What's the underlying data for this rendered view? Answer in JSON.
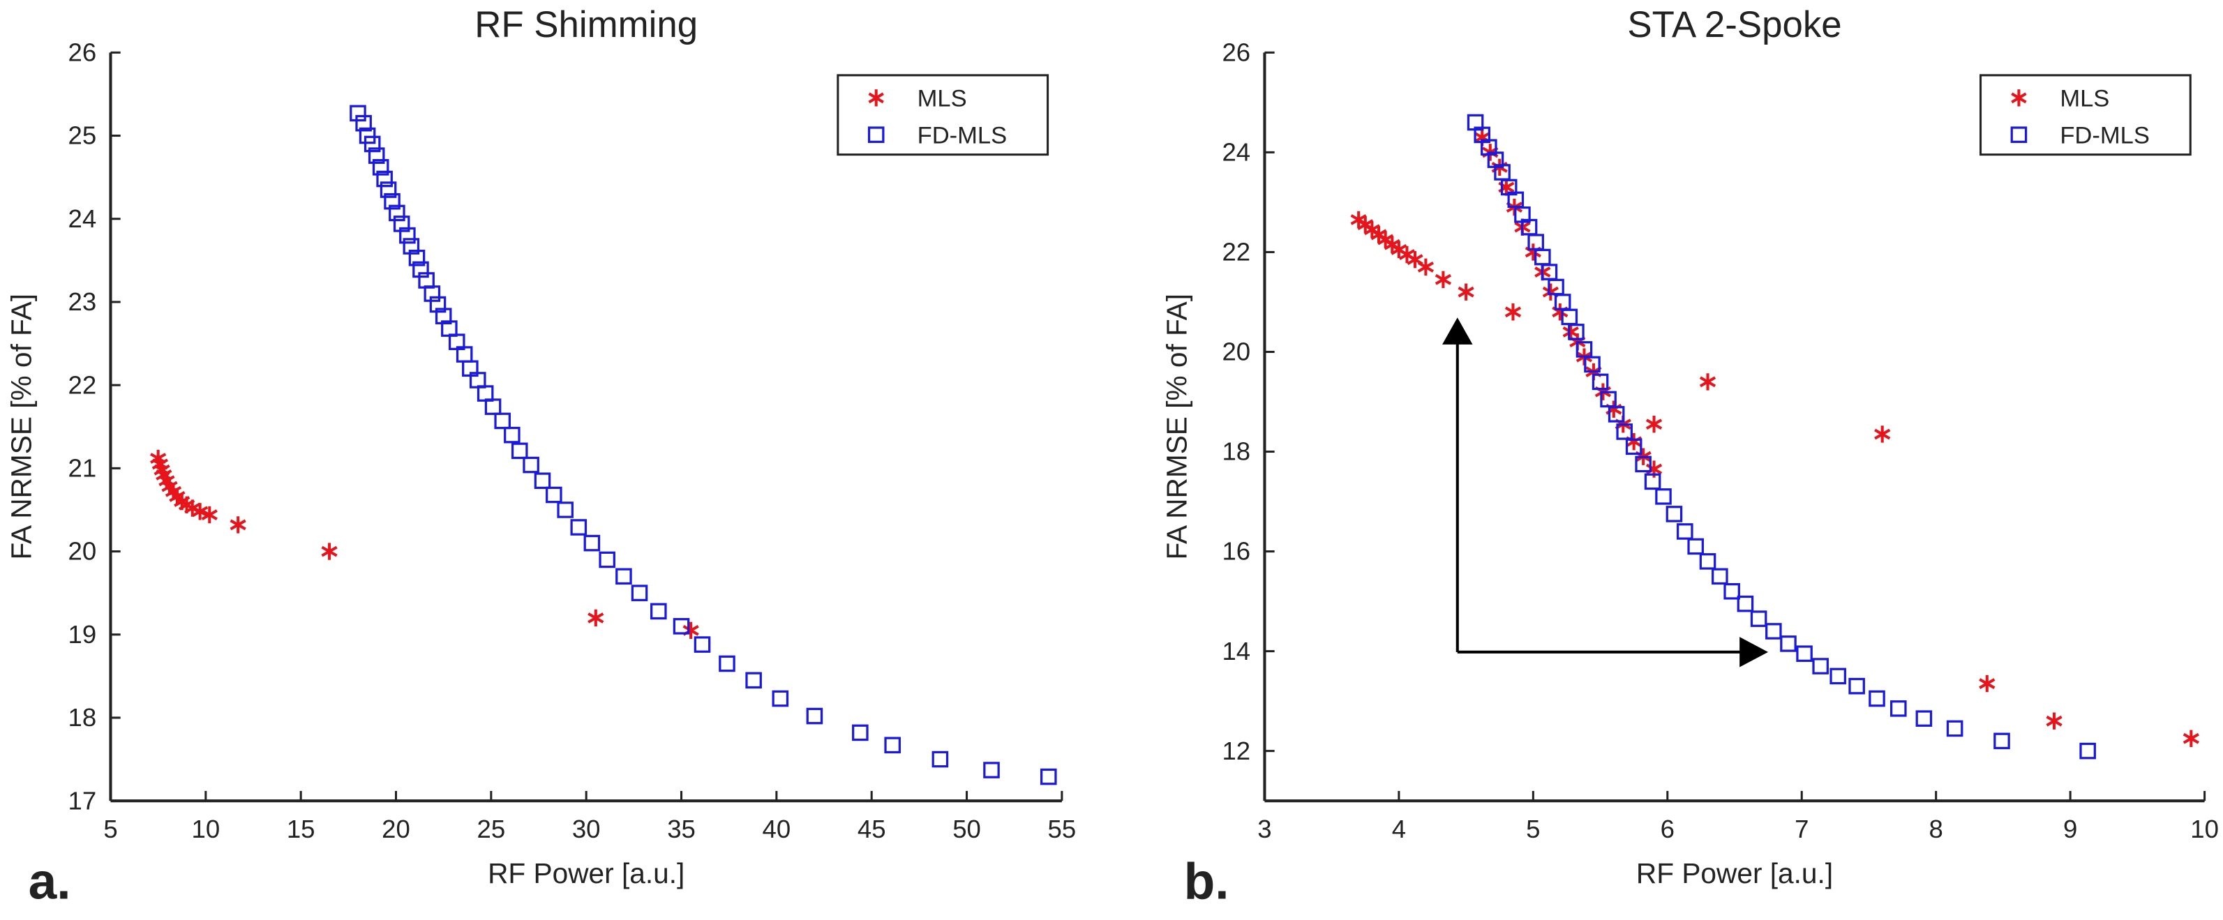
{
  "chart_data": [
    {
      "type": "scatter",
      "title": "RF Shimming",
      "xlabel": "RF Power [a.u.]",
      "ylabel": "FA NRMSE [% of FA]",
      "panel_label": "a.",
      "xlim": [
        5,
        55
      ],
      "xticks": [
        5,
        10,
        15,
        20,
        25,
        30,
        35,
        40,
        45,
        50,
        55
      ],
      "ylim": [
        17,
        26
      ],
      "yticks": [
        17,
        18,
        19,
        20,
        21,
        22,
        23,
        24,
        25,
        26
      ],
      "legend": "upper right",
      "series": [
        {
          "name": "MLS",
          "color": "#e8141b",
          "marker": "asterisk",
          "x": [
            7.5,
            7.6,
            7.7,
            7.8,
            7.95,
            8.1,
            8.3,
            8.5,
            8.75,
            9.0,
            9.3,
            9.7,
            10.2,
            11.7,
            16.5,
            30.5,
            35.5
          ],
          "values": [
            21.12,
            21.05,
            20.98,
            20.92,
            20.85,
            20.78,
            20.72,
            20.66,
            20.6,
            20.56,
            20.52,
            20.48,
            20.44,
            20.32,
            20.0,
            19.2,
            19.05
          ]
        },
        {
          "name": "FD-MLS",
          "color": "#1a1adf",
          "marker": "square",
          "x": [
            18.0,
            18.3,
            18.5,
            18.76,
            18.98,
            19.2,
            19.4,
            19.6,
            19.8,
            20.05,
            20.3,
            20.6,
            20.8,
            21.1,
            21.3,
            21.6,
            21.9,
            22.2,
            22.5,
            22.8,
            23.2,
            23.6,
            23.9,
            24.3,
            24.7,
            25.1,
            25.6,
            26.1,
            26.5,
            27.1,
            27.7,
            28.3,
            28.9,
            29.6,
            30.3,
            31.1,
            31.97,
            32.8,
            33.8,
            35.0,
            36.1,
            37.4,
            38.8,
            40.2,
            42.0,
            44.4,
            46.1,
            48.6,
            51.3,
            54.3
          ],
          "values": [
            25.27,
            25.15,
            25.0,
            24.9,
            24.76,
            24.62,
            24.48,
            24.35,
            24.21,
            24.07,
            23.94,
            23.8,
            23.67,
            23.53,
            23.39,
            23.26,
            23.1,
            22.97,
            22.83,
            22.68,
            22.52,
            22.37,
            22.2,
            22.06,
            21.9,
            21.74,
            21.57,
            21.4,
            21.21,
            21.04,
            20.85,
            20.68,
            20.5,
            20.29,
            20.1,
            19.9,
            19.7,
            19.5,
            19.28,
            19.1,
            18.88,
            18.65,
            18.45,
            18.23,
            18.02,
            17.82,
            17.67,
            17.5,
            17.37,
            17.29
          ]
        }
      ]
    },
    {
      "type": "scatter",
      "title": "STA 2-Spoke",
      "xlabel": "RF Power [a.u.]",
      "ylabel": "FA NRMSE [% of FA]",
      "panel_label": "b.",
      "xlim": [
        3,
        10
      ],
      "xticks": [
        3,
        4,
        5,
        6,
        7,
        8,
        9,
        10
      ],
      "ylim": [
        11,
        26
      ],
      "yticks": [
        12,
        14,
        16,
        18,
        20,
        22,
        24,
        26
      ],
      "legend": "upper right",
      "series": [
        {
          "name": "MLS",
          "color": "#e8141b",
          "marker": "asterisk",
          "x": [
            3.7,
            3.75,
            3.8,
            3.85,
            3.9,
            3.95,
            4.0,
            4.06,
            4.12,
            4.2,
            4.33,
            4.5,
            4.85,
            4.62,
            4.68,
            4.75,
            4.8,
            4.86,
            4.92,
            5.0,
            5.07,
            5.13,
            5.2,
            5.28,
            5.33,
            5.38,
            5.45,
            5.52,
            5.6,
            5.67,
            5.75,
            5.82,
            5.9,
            5.9,
            6.3,
            7.6,
            8.38,
            8.88,
            9.9
          ],
          "values": [
            22.65,
            22.55,
            22.45,
            22.35,
            22.25,
            22.15,
            22.05,
            21.95,
            21.85,
            21.7,
            21.45,
            21.2,
            20.8,
            24.3,
            24.0,
            23.7,
            23.3,
            22.9,
            22.5,
            22.0,
            21.6,
            21.2,
            20.8,
            20.4,
            20.2,
            19.9,
            19.6,
            19.2,
            18.85,
            18.55,
            18.2,
            17.9,
            17.65,
            18.55,
            19.4,
            18.35,
            13.35,
            12.6,
            12.25
          ]
        },
        {
          "name": "FD-MLS",
          "color": "#1a1adf",
          "marker": "square",
          "x": [
            4.57,
            4.62,
            4.67,
            4.72,
            4.77,
            4.82,
            4.87,
            4.92,
            4.97,
            5.02,
            5.07,
            5.12,
            5.17,
            5.22,
            5.27,
            5.32,
            5.38,
            5.44,
            5.5,
            5.56,
            5.62,
            5.68,
            5.75,
            5.82,
            5.89,
            5.97,
            6.05,
            6.13,
            6.21,
            6.3,
            6.39,
            6.48,
            6.58,
            6.68,
            6.79,
            6.9,
            7.02,
            7.14,
            7.27,
            7.41,
            7.56,
            7.72,
            7.91,
            8.14,
            8.49,
            9.13
          ],
          "values": [
            24.6,
            24.35,
            24.1,
            23.85,
            23.6,
            23.3,
            23.05,
            22.75,
            22.5,
            22.2,
            21.9,
            21.6,
            21.3,
            21.0,
            20.7,
            20.4,
            20.05,
            19.75,
            19.4,
            19.05,
            18.75,
            18.4,
            18.1,
            17.75,
            17.4,
            17.1,
            16.75,
            16.4,
            16.1,
            15.8,
            15.5,
            15.2,
            14.95,
            14.65,
            14.4,
            14.15,
            13.95,
            13.7,
            13.5,
            13.3,
            13.05,
            12.85,
            12.65,
            12.45,
            12.2,
            12.0
          ]
        }
      ]
    }
  ]
}
